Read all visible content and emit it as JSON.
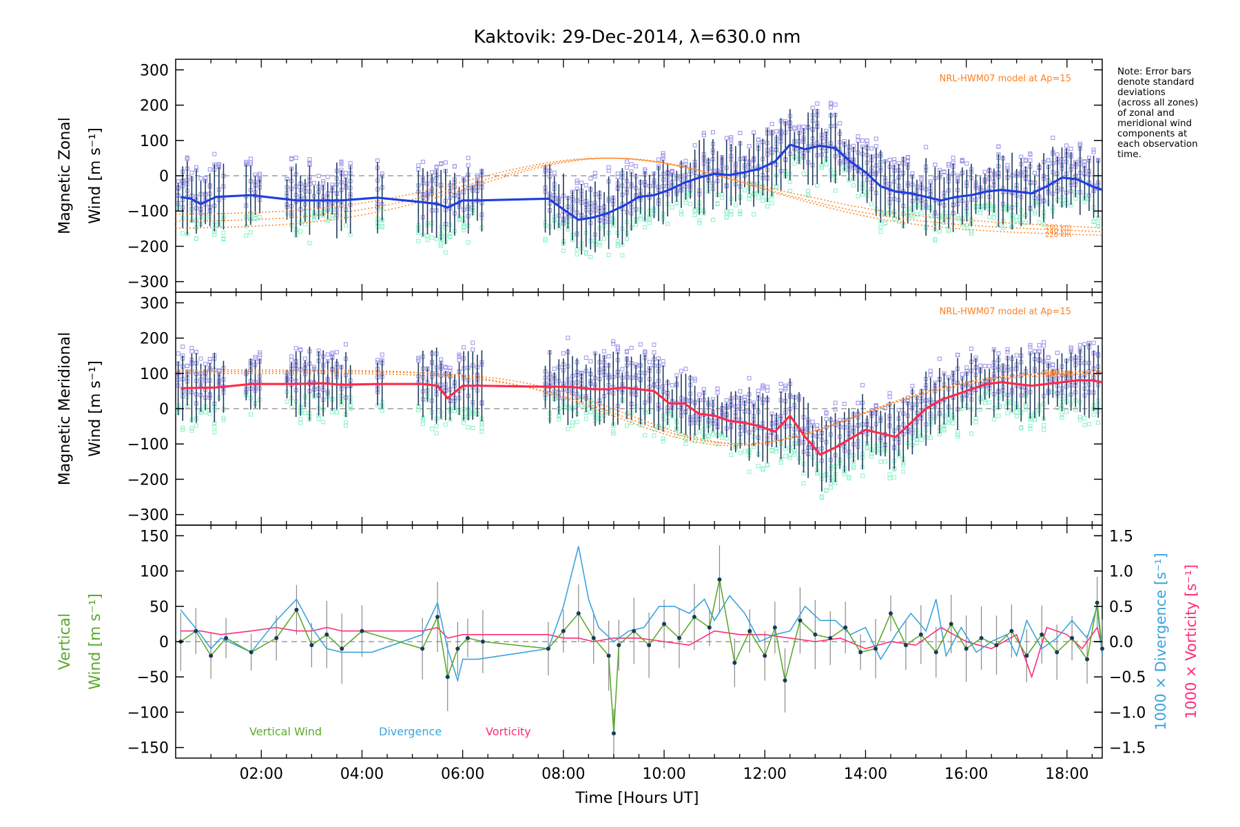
{
  "title": "Kaktovik: 29-Dec-2014, λ=630.0 nm",
  "note": [
    "Note: Error bars",
    "denote standard",
    "deviations",
    "(across all zones)",
    "of zonal and",
    "meridional wind",
    "components at",
    "each observation",
    "time."
  ],
  "x_axis": {
    "label": "Time [Hours UT]",
    "range_hours": [
      0.3,
      18.7
    ],
    "ticks": [
      "02:00",
      "04:00",
      "06:00",
      "08:00",
      "10:00",
      "12:00",
      "14:00",
      "16:00",
      "18:00"
    ],
    "tick_hours": [
      2,
      4,
      6,
      8,
      10,
      12,
      14,
      16,
      18
    ]
  },
  "colors": {
    "zonal": "#1f3fe0",
    "meridional": "#ff2a4a",
    "model": "#ff7f1e",
    "zone_scatter": "#9b8fe8",
    "zone_scatter_low": "#86f2c4",
    "error_bar": "#1a3a5a",
    "vertical": "#5aaa2a",
    "divergence": "#3aa3dd",
    "vorticity": "#ff2a78",
    "zero": "#888888"
  },
  "panels": {
    "zonal": {
      "ylabel_line1": "Magnetic Zonal",
      "ylabel_line2": "Wind [m s⁻¹]",
      "ylim": [
        -330,
        330
      ],
      "yticks": [
        "300",
        "200",
        "100",
        "0",
        "−100",
        "−200",
        "−300"
      ],
      "ytick_values": [
        300,
        200,
        100,
        0,
        -100,
        -200,
        -300
      ],
      "model_label": "NRL-HWM07 model at Ap=15",
      "model_alt_labels": [
        "260 km",
        "240 km",
        "220 km"
      ]
    },
    "meridional": {
      "ylabel_line1": "Magnetic Meridional",
      "ylabel_line2": "Wind [m s⁻¹]",
      "ylim": [
        -330,
        330
      ],
      "yticks": [
        "300",
        "200",
        "100",
        "0",
        "−100",
        "−200",
        "−300"
      ],
      "ytick_values": [
        300,
        200,
        100,
        0,
        -100,
        -200,
        -300
      ],
      "model_label": "NRL-HWM07 model at Ap=15",
      "model_alt_labels": [
        "260 km",
        "240 km",
        "220 km"
      ]
    },
    "vertical": {
      "ylabel_left_line1": "Vertical",
      "ylabel_left_line2": "Wind [m s⁻¹]",
      "ylabel_right_div": "1000 × Divergence [s⁻¹]",
      "ylabel_right_vor": "1000 × Vorticity [s⁻¹]",
      "ylim": [
        -165,
        165
      ],
      "yticks": [
        "150",
        "100",
        "50",
        "0",
        "−50",
        "−100",
        "−150"
      ],
      "ytick_values": [
        150,
        100,
        50,
        0,
        -50,
        -100,
        -150
      ],
      "right_ylim": [
        -1.65,
        1.65
      ],
      "right_yticks": [
        "1.5",
        "1.0",
        "0.5",
        "0.0",
        "−0.5",
        "−1.0",
        "−1.5"
      ],
      "right_ytick_values": [
        1.5,
        1.0,
        0.5,
        0.0,
        -0.5,
        -1.0,
        -1.5
      ],
      "legend": [
        "Vertical Wind",
        "Divergence",
        "Vorticity"
      ]
    }
  },
  "chart_data": [
    {
      "type": "line",
      "title": "Kaktovik: 29-Dec-2014, λ=630.0 nm",
      "ylabel": "Magnetic Zonal Wind [m s⁻¹]",
      "ylim": [
        -330,
        330
      ],
      "series": [
        {
          "name": "Zonal wind",
          "x": [
            0.4,
            0.6,
            0.8,
            1.1,
            1.8,
            2.7,
            3.2,
            3.6,
            4.3,
            5.2,
            5.5,
            5.7,
            6.0,
            6.3,
            7.7,
            8.0,
            8.3,
            8.6,
            8.9,
            9.2,
            9.5,
            9.8,
            10.1,
            10.4,
            10.7,
            11.0,
            11.3,
            11.6,
            11.9,
            12.2,
            12.5,
            12.8,
            13.1,
            13.4,
            13.7,
            14.0,
            14.3,
            14.6,
            14.9,
            15.2,
            15.5,
            15.8,
            16.1,
            16.4,
            16.7,
            17.0,
            17.3,
            17.6,
            17.9,
            18.2,
            18.5,
            18.7
          ],
          "y": [
            -60,
            -65,
            -80,
            -60,
            -55,
            -70,
            -70,
            -70,
            -62,
            -75,
            -80,
            -90,
            -70,
            -70,
            -65,
            -95,
            -125,
            -118,
            -105,
            -85,
            -60,
            -55,
            -40,
            -20,
            -5,
            5,
            2,
            10,
            20,
            40,
            88,
            75,
            85,
            78,
            40,
            10,
            -30,
            -45,
            -50,
            -60,
            -70,
            -60,
            -55,
            -45,
            -40,
            -45,
            -50,
            -30,
            -5,
            -10,
            -30,
            -40
          ]
        }
      ]
    },
    {
      "type": "line",
      "ylabel": "Magnetic Meridional Wind [m s⁻¹]",
      "ylim": [
        -330,
        330
      ],
      "series": [
        {
          "name": "Meridional wind",
          "x": [
            0.4,
            1.1,
            1.8,
            2.7,
            3.2,
            3.6,
            4.3,
            5.2,
            5.5,
            5.7,
            6.0,
            6.3,
            7.7,
            8.0,
            8.3,
            8.6,
            8.9,
            9.2,
            9.5,
            9.8,
            10.1,
            10.4,
            10.7,
            11.0,
            11.3,
            11.6,
            11.9,
            12.2,
            12.5,
            12.8,
            13.1,
            13.4,
            13.7,
            14.0,
            14.3,
            14.6,
            14.9,
            15.2,
            15.5,
            15.8,
            16.1,
            16.4,
            16.7,
            17.0,
            17.3,
            17.6,
            17.9,
            18.2,
            18.5,
            18.7
          ],
          "y": [
            58,
            60,
            70,
            70,
            72,
            68,
            70,
            70,
            65,
            30,
            65,
            65,
            62,
            62,
            60,
            55,
            55,
            60,
            55,
            50,
            15,
            15,
            -15,
            -20,
            -35,
            -40,
            -50,
            -65,
            -20,
            -80,
            -130,
            -110,
            -85,
            -60,
            -70,
            -80,
            -40,
            0,
            25,
            40,
            55,
            70,
            75,
            70,
            65,
            70,
            75,
            80,
            80,
            75
          ]
        }
      ]
    },
    {
      "type": "line",
      "ylabel": "Vertical Wind [m s⁻¹]",
      "ylim": [
        -165,
        165
      ],
      "series": [
        {
          "name": "Vertical Wind",
          "x": [
            0.4,
            0.7,
            1.0,
            1.3,
            1.8,
            2.3,
            2.7,
            3.0,
            3.3,
            3.6,
            4.0,
            5.2,
            5.5,
            5.7,
            5.9,
            6.1,
            6.4,
            7.7,
            8.0,
            8.3,
            8.6,
            8.9,
            9.0,
            9.1,
            9.4,
            9.7,
            10.0,
            10.3,
            10.6,
            10.9,
            11.1,
            11.4,
            11.7,
            12.0,
            12.2,
            12.4,
            12.7,
            13.0,
            13.3,
            13.6,
            13.9,
            14.2,
            14.5,
            14.8,
            15.1,
            15.4,
            15.7,
            16.0,
            16.3,
            16.6,
            16.9,
            17.2,
            17.5,
            17.8,
            18.1,
            18.4,
            18.6,
            18.7
          ],
          "y": [
            0,
            15,
            -20,
            5,
            -15,
            5,
            45,
            -5,
            10,
            -10,
            15,
            -10,
            35,
            -50,
            -10,
            5,
            0,
            -10,
            15,
            40,
            5,
            -20,
            -130,
            -5,
            15,
            -5,
            25,
            5,
            35,
            20,
            88,
            -30,
            15,
            -20,
            20,
            -55,
            30,
            10,
            5,
            20,
            -15,
            -10,
            40,
            -5,
            10,
            -15,
            25,
            -10,
            5,
            -5,
            15,
            -20,
            10,
            -15,
            5,
            -25,
            55,
            -10
          ]
        },
        {
          "name": "Divergence",
          "x": [
            0.4,
            0.8,
            1.0,
            1.2,
            1.8,
            2.3,
            2.7,
            3.0,
            3.3,
            3.6,
            4.2,
            5.2,
            5.5,
            5.7,
            5.9,
            6.0,
            6.3,
            7.7,
            8.0,
            8.3,
            8.5,
            8.7,
            9.0,
            9.3,
            9.6,
            9.9,
            10.2,
            10.5,
            10.8,
            11.0,
            11.3,
            11.6,
            11.9,
            12.2,
            12.5,
            12.8,
            13.1,
            13.4,
            13.7,
            14.0,
            14.3,
            14.6,
            14.9,
            15.2,
            15.4,
            15.6,
            15.9,
            16.2,
            16.5,
            16.8,
            17.0,
            17.2,
            17.5,
            17.8,
            18.1,
            18.4,
            18.6,
            18.7
          ],
          "y": [
            0.45,
            0.1,
            -0.1,
            0.05,
            -0.15,
            0.3,
            0.6,
            0.2,
            -0.1,
            -0.15,
            -0.15,
            0.1,
            0.55,
            -0.1,
            -0.55,
            -0.25,
            -0.25,
            -0.1,
            0.5,
            1.35,
            0.6,
            0.2,
            0.0,
            0.15,
            0.2,
            0.5,
            0.5,
            0.4,
            0.6,
            0.3,
            0.65,
            0.4,
            0.0,
            0.1,
            0.15,
            0.5,
            0.3,
            0.3,
            0.1,
            0.2,
            -0.25,
            0.1,
            0.4,
            0.15,
            0.6,
            -0.2,
            0.2,
            -0.15,
            0.0,
            0.1,
            -0.2,
            0.3,
            -0.1,
            0.05,
            0.3,
            0.05,
            0.5,
            -0.2
          ]
        },
        {
          "name": "Vorticity",
          "x": [
            0.4,
            0.8,
            1.2,
            1.8,
            2.3,
            2.7,
            3.0,
            3.3,
            3.6,
            4.2,
            5.2,
            5.5,
            5.7,
            6.0,
            6.3,
            7.7,
            8.0,
            8.3,
            8.6,
            9.0,
            9.5,
            10.0,
            10.5,
            11.0,
            11.5,
            12.0,
            12.5,
            13.0,
            13.5,
            14.0,
            14.5,
            15.0,
            15.5,
            16.0,
            16.5,
            17.0,
            17.3,
            17.6,
            18.0,
            18.3,
            18.6,
            18.7
          ],
          "y": [
            0.15,
            0.15,
            0.1,
            0.15,
            0.2,
            0.15,
            0.15,
            0.2,
            0.15,
            0.15,
            0.15,
            0.2,
            0.05,
            0.1,
            0.1,
            0.1,
            0.05,
            0.05,
            0.0,
            0.05,
            0.05,
            0.0,
            -0.05,
            0.15,
            0.1,
            0.1,
            0.05,
            0.0,
            0.05,
            -0.1,
            0.0,
            -0.05,
            0.2,
            0.0,
            -0.1,
            0.1,
            -0.5,
            0.2,
            0.1,
            -0.1,
            0.2,
            -0.1
          ]
        }
      ]
    }
  ]
}
